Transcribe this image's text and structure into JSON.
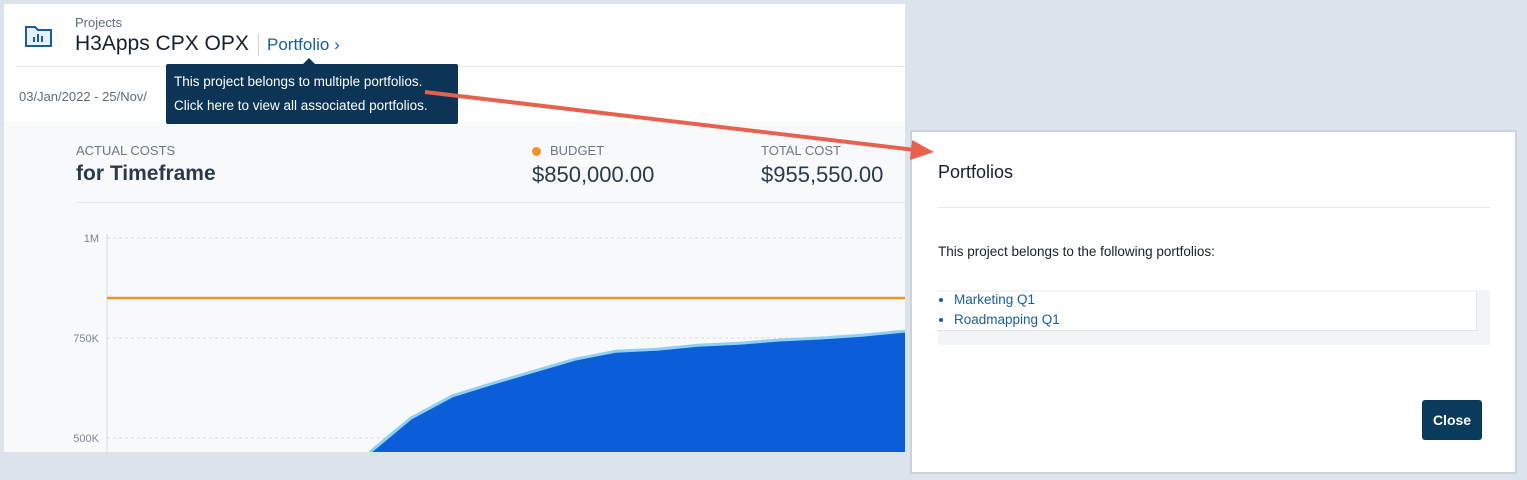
{
  "header": {
    "breadcrumb": "Projects",
    "title": "H3Apps CPX OPX",
    "portfolio_link": "Portfolio ›"
  },
  "tooltip": "This project belongs to multiple portfolios. Click here to view all associated portfolios.",
  "date_range": "03/Jan/2022 - 25/Nov/",
  "summary": {
    "label": "ACTUAL COSTS",
    "title": "for Timeframe"
  },
  "budget": {
    "label": "BUDGET",
    "value": "$850,000.00"
  },
  "total_cost": {
    "label": "TOTAL COST",
    "value": "$955,550.00"
  },
  "chart": {
    "type": "area",
    "ylim": [
      465000,
      1025000
    ],
    "yticks": [
      {
        "value": 1000000,
        "label": "1M"
      },
      {
        "value": 750000,
        "label": "750K"
      },
      {
        "value": 500000,
        "label": "500K"
      }
    ],
    "budget_line": {
      "value": 850000,
      "color": "#f0932b"
    },
    "area": {
      "color": "#0b5ed7",
      "edge_color": "#8fd0f5",
      "values": [
        465000,
        550000,
        605000,
        637000,
        667000,
        697000,
        717000,
        722000,
        732000,
        737000,
        745000,
        750000,
        757000,
        767000
      ]
    }
  },
  "modal": {
    "title": "Portfolios",
    "intro": "This project belongs to the following portfolios:",
    "portfolios": [
      "Marketing Q1",
      "Roadmapping Q1"
    ],
    "close": "Close"
  }
}
